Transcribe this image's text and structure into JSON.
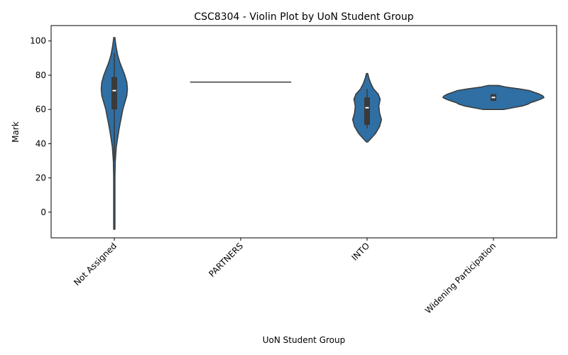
{
  "chart_data": {
    "type": "violin",
    "title": "CSC8304 - Violin Plot by UoN Student Group",
    "xlabel": "UoN Student Group",
    "ylabel": "Mark",
    "ylim": [
      -15,
      109
    ],
    "yticks": [
      0,
      20,
      40,
      60,
      80,
      100
    ],
    "grid": false,
    "color": "#2f6fa3",
    "edge_color": "#3a3a3a",
    "categories": [
      "Not Assigned",
      "PARTNERS",
      "INTO",
      "Widening Participation"
    ],
    "groups": [
      {
        "name": "Not Assigned",
        "min": -10,
        "q1": 60,
        "median": 71,
        "q3": 79,
        "max": 102,
        "whisker_low": 30,
        "whisker_high": 93,
        "profile": [
          [
            -10,
            1
          ],
          [
            0,
            1
          ],
          [
            20,
            1
          ],
          [
            30,
            1.5
          ],
          [
            38,
            3
          ],
          [
            43,
            5
          ],
          [
            48,
            7
          ],
          [
            52,
            9
          ],
          [
            56,
            11
          ],
          [
            60,
            13
          ],
          [
            64,
            16
          ],
          [
            68,
            19
          ],
          [
            72,
            20
          ],
          [
            76,
            19
          ],
          [
            80,
            16
          ],
          [
            84,
            12
          ],
          [
            88,
            8
          ],
          [
            92,
            5
          ],
          [
            96,
            3
          ],
          [
            100,
            1.5
          ],
          [
            102,
            1
          ]
        ]
      },
      {
        "name": "PARTNERS",
        "min": 76,
        "q1": 76,
        "median": 76,
        "q3": 76,
        "max": 76,
        "whisker_low": 76,
        "whisker_high": 76,
        "flat_line": true
      },
      {
        "name": "INTO",
        "min": 41,
        "q1": 51,
        "median": 61,
        "q3": 67,
        "max": 81,
        "whisker_low": 49,
        "whisker_high": 72,
        "profile": [
          [
            41,
            1
          ],
          [
            43,
            6
          ],
          [
            46,
            13
          ],
          [
            50,
            19
          ],
          [
            54,
            22
          ],
          [
            58,
            19
          ],
          [
            62,
            18
          ],
          [
            66,
            20
          ],
          [
            69,
            17
          ],
          [
            72,
            10
          ],
          [
            75,
            6
          ],
          [
            78,
            3
          ],
          [
            81,
            1
          ]
        ]
      },
      {
        "name": "Widening Participation",
        "min": 60,
        "q1": 65,
        "median": 67,
        "q3": 69,
        "max": 74,
        "whisker_low": 65,
        "whisker_high": 69,
        "profile": [
          [
            60,
            16
          ],
          [
            61,
            30
          ],
          [
            62,
            44
          ],
          [
            63,
            52
          ],
          [
            64,
            57
          ],
          [
            65,
            65
          ],
          [
            66,
            72
          ],
          [
            67,
            77
          ],
          [
            68,
            75
          ],
          [
            69,
            70
          ],
          [
            70,
            62
          ],
          [
            71,
            55
          ],
          [
            72,
            40
          ],
          [
            73,
            20
          ],
          [
            74,
            8
          ]
        ]
      }
    ]
  }
}
